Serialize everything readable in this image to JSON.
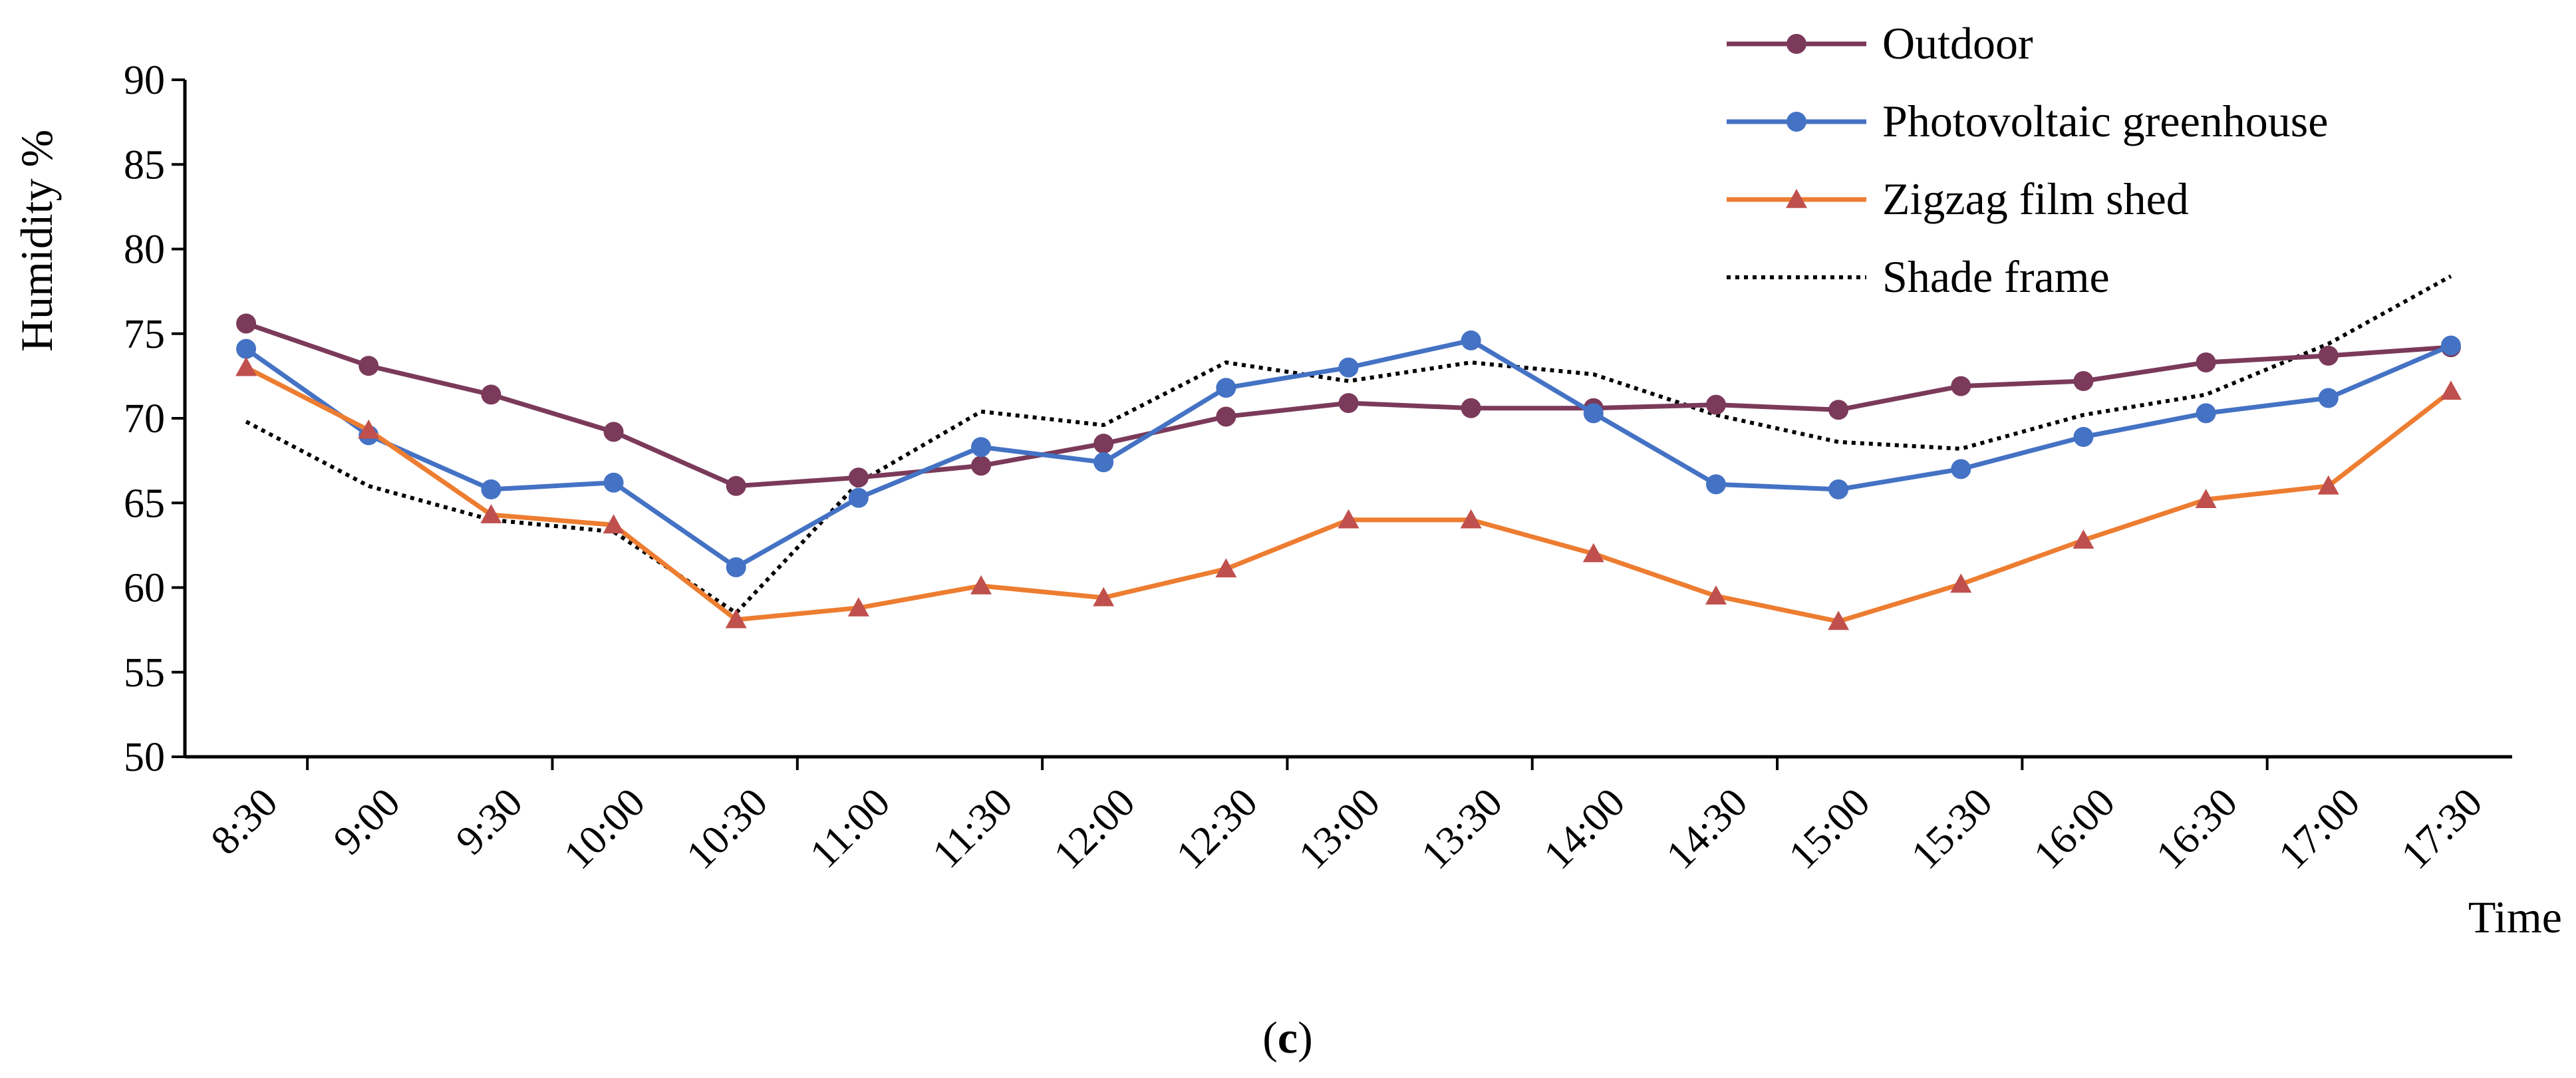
{
  "chart_data": {
    "type": "line",
    "categories": [
      "8:30",
      "9:00",
      "9:30",
      "10:00",
      "10:30",
      "11:00",
      "11:30",
      "12:00",
      "12:30",
      "13:00",
      "13:30",
      "14:00",
      "14:30",
      "15:00",
      "15:30",
      "16:00",
      "16:30",
      "17:00",
      "17:30"
    ],
    "ylabel": "Humidity %",
    "xlabel": "Time",
    "ylim": [
      50,
      90
    ],
    "yticks": [
      50,
      55,
      60,
      65,
      70,
      75,
      80,
      85,
      90
    ],
    "caption_open": "(",
    "caption_letter": "c",
    "caption_close": ")",
    "series": [
      {
        "name": "Outdoor",
        "color": "#7b3a5a",
        "marker": "circle",
        "dash": "none",
        "values": [
          75.6,
          73.1,
          71.4,
          69.2,
          66.0,
          66.5,
          67.2,
          68.5,
          70.1,
          70.9,
          70.6,
          70.6,
          70.8,
          70.5,
          71.9,
          72.2,
          73.3,
          73.7,
          74.2
        ]
      },
      {
        "name": "Photovoltaic greenhouse",
        "color": "#4472c4",
        "marker": "circle",
        "dash": "none",
        "values": [
          74.1,
          69.0,
          65.8,
          66.2,
          61.2,
          65.3,
          68.3,
          67.4,
          71.8,
          73.0,
          74.6,
          70.3,
          66.1,
          65.8,
          67.0,
          68.9,
          70.3,
          71.2,
          74.3
        ]
      },
      {
        "name": "Zigzag film shed",
        "color": "#ed7d31",
        "marker": "triangle",
        "dash": "none",
        "values": [
          73.0,
          69.3,
          64.3,
          63.7,
          58.1,
          58.8,
          60.1,
          59.4,
          61.1,
          64.0,
          64.0,
          62.0,
          59.5,
          58.0,
          60.2,
          62.8,
          65.2,
          66.0,
          71.6
        ]
      },
      {
        "name": "Shade frame",
        "color": "#000000",
        "marker": "none",
        "dash": "dotted",
        "values": [
          69.8,
          66.0,
          64.0,
          63.3,
          58.5,
          66.2,
          70.4,
          69.6,
          73.3,
          72.2,
          73.3,
          72.6,
          70.2,
          68.6,
          68.2,
          70.2,
          71.4,
          74.4,
          78.4
        ]
      }
    ]
  }
}
